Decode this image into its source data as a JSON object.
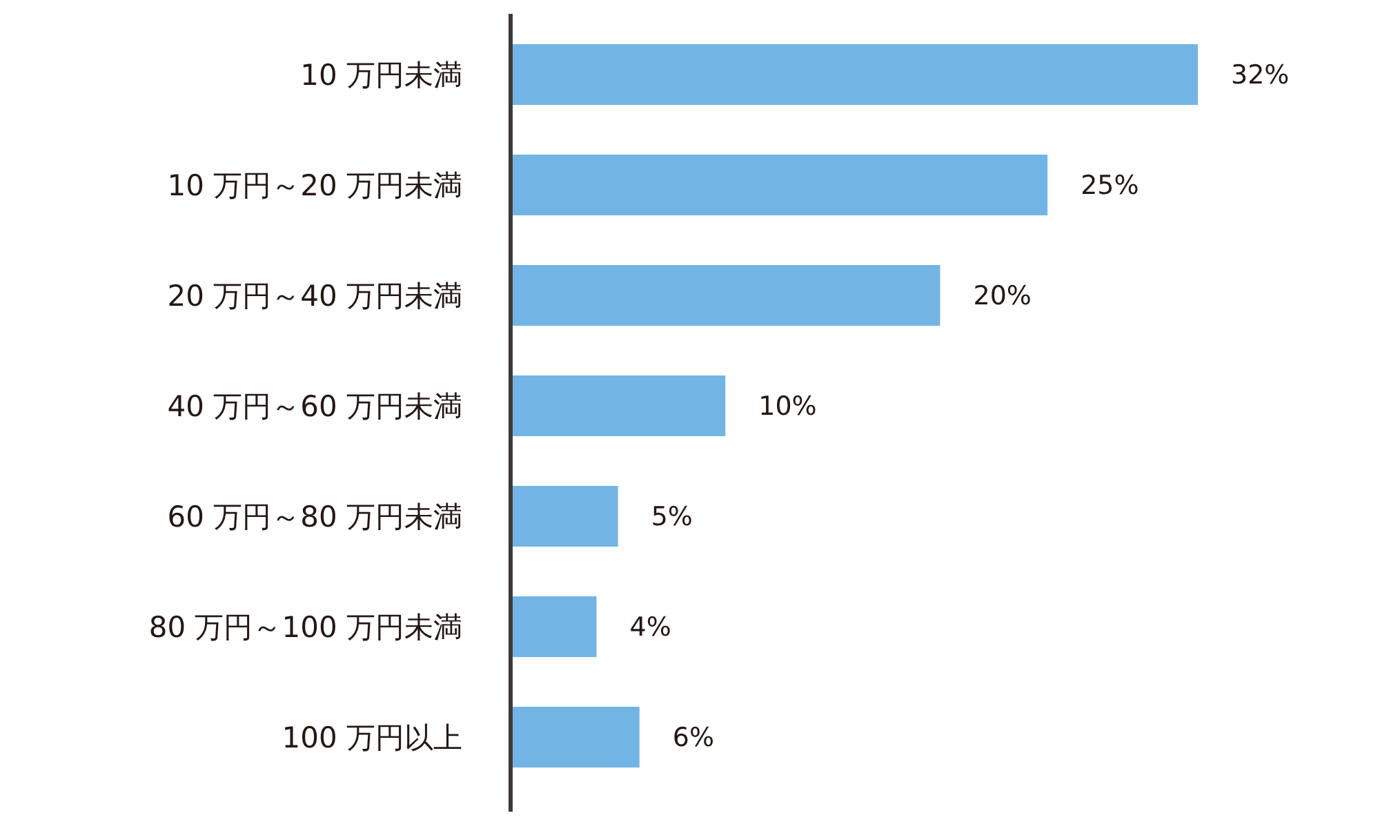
{
  "chart_data": {
    "type": "bar",
    "orientation": "horizontal",
    "categories": [
      "10 万円未満",
      "10 万円～20 万円未満",
      "20 万円～40 万円未満",
      "40 万円～60 万円未満",
      "60 万円～80 万円未満",
      "80 万円～100 万円未満",
      "100 万円以上"
    ],
    "values": [
      32,
      25,
      20,
      10,
      5,
      4,
      6
    ],
    "value_labels": [
      "32%",
      "25%",
      "20%",
      "10%",
      "5%",
      "4%",
      "6%"
    ],
    "color": "#72b5e4"
  }
}
